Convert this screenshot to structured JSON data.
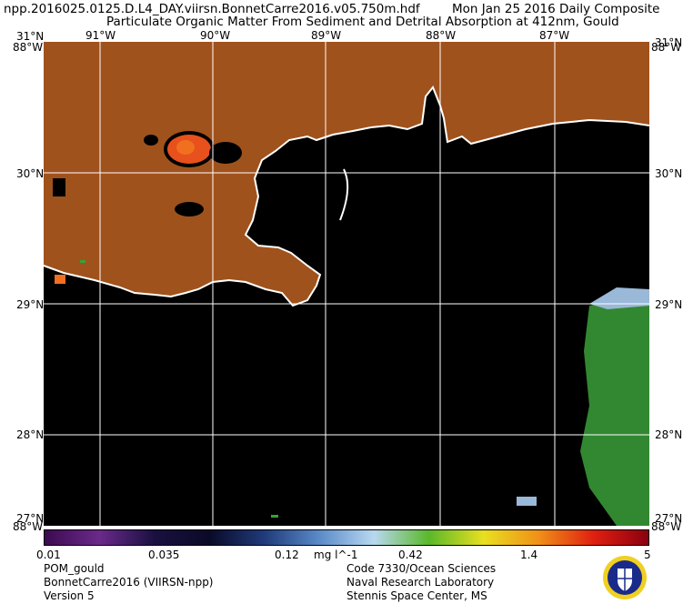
{
  "header": {
    "filename": "npp.2016025.0125.D.L4_DAY.viirsn.BonnetCarre2016.v05.750m.hdf",
    "date": "Mon Jan 25 2016 Daily Composite",
    "subtitle": "Particulate Organic Matter From Sediment and Detrital Absorption at 412nm, Gould"
  },
  "map": {
    "lon_ticks": [
      {
        "deg": -91,
        "label": "91°W"
      },
      {
        "deg": -90,
        "label": "90°W"
      },
      {
        "deg": -89,
        "label": "89°W"
      },
      {
        "deg": -88,
        "label": "88°W"
      },
      {
        "deg": -87,
        "label": "87°W"
      }
    ],
    "lat_ticks": [
      {
        "deg": 31,
        "label": "31°N"
      },
      {
        "deg": 30,
        "label": "30°N"
      },
      {
        "deg": 29,
        "label": "29°N"
      },
      {
        "deg": 28,
        "label": "28°N"
      },
      {
        "deg": 27.3,
        "label": "27°N"
      }
    ],
    "corner_labels": {
      "top_left": "88°W",
      "top_right": "88°W",
      "bottom_left": "88°W",
      "bottom_right": "88°W"
    },
    "colors": {
      "land": "#a0521c",
      "water": "#000000",
      "grid": "#ffffff",
      "coast": "#ffffff",
      "high_value": "#e8501c",
      "mid_value": "#3aa03a",
      "low_value": "#9ab8d8"
    }
  },
  "colorbar": {
    "labels": [
      "0.01",
      "0.035",
      "0.12",
      "0.42",
      "1.4",
      "5"
    ],
    "units": "mg l^-1",
    "stops": [
      "#3c0a50",
      "#6a2a8a",
      "#1a1040",
      "#0a0a28",
      "#203a7a",
      "#5a8ac8",
      "#b8d8f0",
      "#5ab82a",
      "#e8e020",
      "#f09018",
      "#e02010",
      "#8a0010"
    ]
  },
  "footer": {
    "left": [
      "POM_gould",
      "BonnetCarre2016 (VIIRSN-npp)",
      "Version 5"
    ],
    "right": [
      "Code 7330/Ocean Sciences",
      "Naval Research Laboratory",
      "Stennis Space Center, MS"
    ]
  }
}
